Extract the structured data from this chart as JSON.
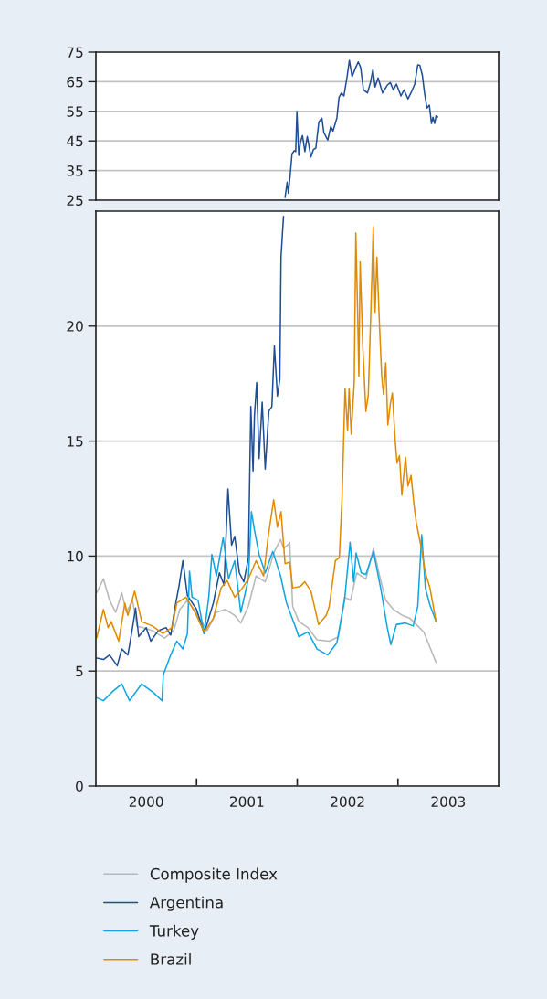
{
  "chart_data": [
    {
      "type": "line",
      "xlim": [
        2000,
        2004
      ],
      "ylim": [
        25,
        75
      ],
      "yticks": [
        25,
        35,
        45,
        55,
        65,
        75
      ],
      "grid": "y",
      "tick_labels": "y",
      "series": [
        {
          "color": "#1f4e96",
          "x": [
            2001.879,
            2001.9,
            2001.912,
            2001.93,
            2001.948,
            2001.97,
            2001.985,
            2001.997,
            2002.015,
            2002.033,
            2002.052,
            2002.076,
            2002.1,
            2002.136,
            2002.161,
            2002.185,
            2002.215,
            2002.245,
            2002.264,
            2002.303,
            2002.333,
            2002.355,
            2002.394,
            2002.415,
            2002.439,
            2002.464,
            2002.494,
            2002.518,
            2002.545,
            2002.576,
            2002.606,
            2002.63,
            2002.658,
            2002.697,
            2002.727,
            2002.752,
            2002.773,
            2002.803,
            2002.848,
            2002.894,
            2002.924,
            2002.955,
            2002.985,
            2003.03,
            2003.061,
            2003.1,
            2003.136,
            2003.167,
            2003.197,
            2003.218,
            2003.242,
            2003.264,
            2003.288,
            2003.312,
            2003.333,
            2003.348,
            2003.364,
            2003.379,
            2003.394
          ],
          "values": [
            25.9,
            31.1,
            27.3,
            33.4,
            40.6,
            41.7,
            41.4,
            55.0,
            40.1,
            44.8,
            46.8,
            41.4,
            46.5,
            39.6,
            42.1,
            42.6,
            51.5,
            52.7,
            47.9,
            45.3,
            49.9,
            48.3,
            52.8,
            59.7,
            61.2,
            60.2,
            66.4,
            72.2,
            66.7,
            69.4,
            71.7,
            69.8,
            62.2,
            61.2,
            64.7,
            69.1,
            63.2,
            66.3,
            61.2,
            63.8,
            64.7,
            62.2,
            64.2,
            60.2,
            62.2,
            59.2,
            61.7,
            64.2,
            70.7,
            70.5,
            67.3,
            61.2,
            56.1,
            57.1,
            50.9,
            53.0,
            50.9,
            53.5,
            53.1
          ]
        }
      ]
    },
    {
      "type": "line",
      "xlim": [
        2000,
        2004
      ],
      "ylim": [
        0,
        25
      ],
      "yticks": [
        0,
        5,
        10,
        15,
        20
      ],
      "grid": "y",
      "legend": "bottom",
      "xticks": [
        {
          "value": 2000.5,
          "label": "2000"
        },
        {
          "value": 2001,
          "label": null
        },
        {
          "value": 2001.5,
          "label": "2001"
        },
        {
          "value": 2002,
          "label": null
        },
        {
          "value": 2002.5,
          "label": "2002"
        },
        {
          "value": 2003,
          "label": null
        },
        {
          "value": 2003.5,
          "label": "2003"
        }
      ],
      "series": [
        {
          "name": "Composite Index",
          "color": "#b8b8b8",
          "x": [
            2000.009,
            2000.075,
            2000.136,
            2000.197,
            2000.257,
            2000.303,
            2000.364,
            2000.409,
            2000.47,
            2000.561,
            2000.682,
            2000.773,
            2000.834,
            2000.909,
            2001.015,
            2001.106,
            2001.197,
            2001.288,
            2001.379,
            2001.439,
            2001.515,
            2001.591,
            2001.682,
            2001.773,
            2001.834,
            2001.864,
            2001.909,
            2001.925,
            2001.955,
            2002.015,
            2002.106,
            2002.197,
            2002.318,
            2002.409,
            2002.47,
            2002.53,
            2002.591,
            2002.682,
            2002.757,
            2002.818,
            2002.879,
            2002.955,
            2003.045,
            2003.121,
            2003.197,
            2003.257,
            2003.318,
            2003.379
          ],
          "values": [
            8.41,
            9.01,
            8.08,
            7.55,
            8.41,
            7.55,
            8.08,
            6.95,
            6.89,
            6.76,
            6.43,
            6.76,
            7.68,
            8.08,
            7.42,
            6.76,
            7.55,
            7.68,
            7.42,
            7.09,
            7.82,
            9.14,
            8.88,
            10.2,
            10.72,
            10.33,
            10.5,
            10.6,
            7.82,
            7.16,
            6.89,
            6.36,
            6.3,
            6.49,
            8.21,
            8.08,
            9.27,
            9.0,
            10.33,
            9.14,
            8.08,
            7.68,
            7.42,
            7.29,
            6.96,
            6.7,
            6.03,
            5.37
          ]
        },
        {
          "name": "Argentina",
          "color": "#1f4e96",
          "x": [
            2000.009,
            2000.075,
            2000.136,
            2000.212,
            2000.257,
            2000.318,
            2000.364,
            2000.394,
            2000.425,
            2000.5,
            2000.545,
            2000.621,
            2000.697,
            2000.743,
            2000.788,
            2000.827,
            2000.864,
            2000.909,
            2001.0,
            2001.075,
            2001.166,
            2001.227,
            2001.273,
            2001.312,
            2001.348,
            2001.379,
            2001.425,
            2001.47,
            2001.515,
            2001.539,
            2001.561,
            2001.575,
            2001.597,
            2001.621,
            2001.652,
            2001.682,
            2001.718,
            2001.748,
            2001.773,
            2001.803,
            2001.827,
            2001.839,
            2001.857,
            2001.864
          ],
          "values": [
            5.56,
            5.5,
            5.7,
            5.23,
            5.96,
            5.7,
            6.89,
            7.74,
            6.5,
            6.89,
            6.3,
            6.76,
            6.89,
            6.56,
            7.82,
            8.74,
            9.8,
            8.28,
            7.68,
            6.63,
            7.95,
            9.27,
            8.74,
            12.92,
            10.47,
            10.86,
            9.27,
            8.88,
            9.93,
            16.5,
            13.7,
            16.1,
            17.55,
            14.24,
            16.69,
            13.78,
            16.3,
            16.5,
            19.14,
            16.96,
            17.69,
            23.0,
            24.3,
            24.77
          ]
        },
        {
          "name": "Turkey",
          "color": "#0ea5e4",
          "x": [
            2000.009,
            2000.075,
            2000.166,
            2000.257,
            2000.334,
            2000.455,
            2000.575,
            2000.657,
            2000.67,
            2000.743,
            2000.803,
            2000.864,
            2000.909,
            2000.93,
            2000.955,
            2001.015,
            2001.075,
            2001.121,
            2001.152,
            2001.197,
            2001.264,
            2001.318,
            2001.379,
            2001.439,
            2001.515,
            2001.545,
            2001.575,
            2001.621,
            2001.682,
            2001.757,
            2001.834,
            2001.894,
            2001.985,
            2002.015,
            2002.106,
            2002.197,
            2002.303,
            2002.394,
            2002.47,
            2002.525,
            2002.561,
            2002.585,
            2002.636,
            2002.682,
            2002.757,
            2002.834,
            2002.894,
            2002.93,
            2002.985,
            2003.075,
            2003.152,
            2003.197,
            2003.236,
            2003.273,
            2003.318,
            2003.379
          ],
          "values": [
            3.84,
            3.71,
            4.11,
            4.44,
            3.71,
            4.44,
            4.05,
            3.71,
            4.84,
            5.7,
            6.3,
            5.96,
            6.63,
            9.34,
            8.21,
            8.08,
            6.63,
            8.21,
            10.07,
            9.14,
            10.8,
            9.01,
            9.8,
            7.55,
            9.01,
            11.93,
            11.13,
            10.07,
            9.27,
            10.2,
            9.14,
            7.95,
            6.89,
            6.5,
            6.7,
            5.96,
            5.7,
            6.23,
            8.08,
            10.6,
            8.88,
            10.13,
            9.27,
            9.2,
            10.2,
            8.48,
            6.89,
            6.15,
            7.02,
            7.09,
            6.96,
            7.82,
            10.93,
            8.6,
            7.87,
            7.15
          ]
        },
        {
          "name": "Brazil",
          "color": "#e08a00",
          "x": [
            2000.009,
            2000.075,
            2000.121,
            2000.152,
            2000.227,
            2000.288,
            2000.318,
            2000.385,
            2000.455,
            2000.561,
            2000.666,
            2000.757,
            2000.803,
            2000.894,
            2000.985,
            2001.075,
            2001.166,
            2001.243,
            2001.303,
            2001.379,
            2001.455,
            2001.515,
            2001.591,
            2001.666,
            2001.712,
            2001.766,
            2001.803,
            2001.839,
            2001.879,
            2001.925,
            2001.955,
            2002.03,
            2002.075,
            2002.136,
            2002.212,
            2002.288,
            2002.318,
            2002.379,
            2002.418,
            2002.445,
            2002.475,
            2002.5,
            2002.515,
            2002.536,
            2002.566,
            2002.582,
            2002.6,
            2002.612,
            2002.625,
            2002.652,
            2002.682,
            2002.706,
            2002.73,
            2002.743,
            2002.755,
            2002.773,
            2002.791,
            2002.818,
            2002.839,
            2002.857,
            2002.879,
            2002.9,
            2002.925,
            2002.945,
            2002.973,
            2002.991,
            2003.015,
            2003.039,
            2003.075,
            2003.1,
            2003.13,
            2003.161,
            2003.182,
            2003.227,
            2003.273,
            2003.318,
            2003.379
          ],
          "values": [
            6.46,
            7.68,
            6.89,
            7.15,
            6.3,
            7.95,
            7.42,
            8.48,
            7.15,
            6.96,
            6.63,
            6.89,
            7.95,
            8.21,
            7.55,
            6.69,
            7.29,
            8.61,
            8.94,
            8.21,
            8.61,
            9.01,
            9.8,
            9.14,
            10.86,
            12.45,
            11.26,
            11.93,
            9.67,
            9.74,
            8.61,
            8.68,
            8.88,
            8.48,
            7.02,
            7.42,
            7.82,
            9.8,
            9.93,
            12.52,
            17.29,
            15.44,
            17.29,
            15.3,
            17.55,
            24.05,
            20.6,
            17.82,
            22.79,
            19.01,
            16.29,
            17.03,
            20.47,
            22.39,
            24.31,
            20.6,
            22.99,
            19.94,
            17.82,
            17.03,
            18.4,
            15.7,
            16.63,
            17.09,
            15.03,
            14.04,
            14.37,
            12.65,
            14.3,
            13.05,
            13.51,
            12.18,
            11.46,
            10.47,
            9.27,
            8.61,
            7.15
          ]
        }
      ]
    }
  ]
}
